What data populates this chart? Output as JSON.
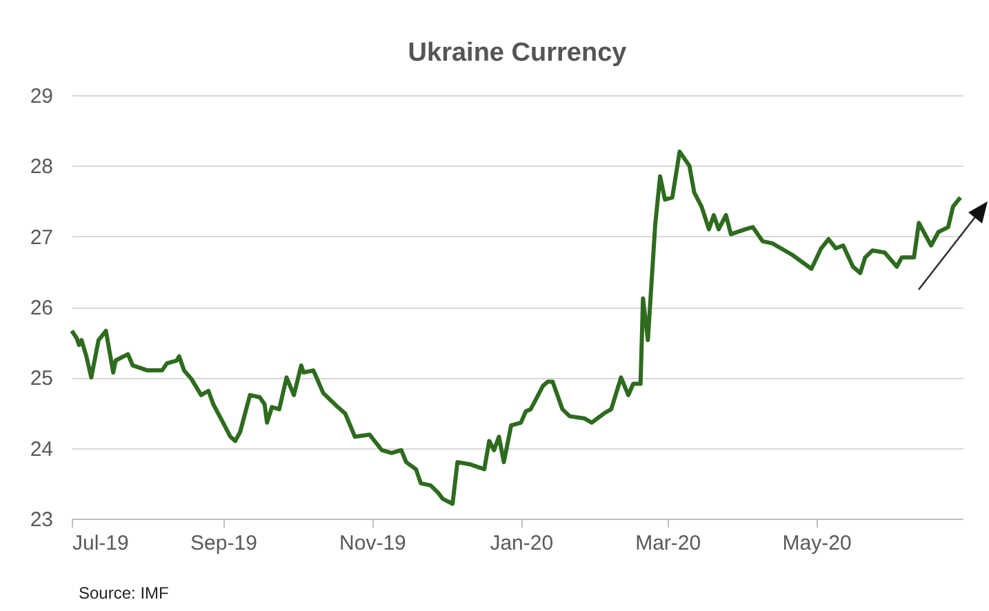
{
  "chart_data": {
    "type": "line",
    "title": "Ukraine Currency",
    "annotations": [
      "Source: IMF"
    ],
    "x": [
      "2019-07-01",
      "2019-07-03",
      "2019-07-04",
      "2019-07-05",
      "2019-07-07",
      "2019-07-09",
      "2019-07-12",
      "2019-07-15",
      "2019-07-18",
      "2019-07-19",
      "2019-07-24",
      "2019-07-26",
      "2019-08-01",
      "2019-08-07",
      "2019-08-09",
      "2019-08-13",
      "2019-08-14",
      "2019-08-16",
      "2019-08-19",
      "2019-08-23",
      "2019-08-26",
      "2019-08-28",
      "2019-09-01",
      "2019-09-04",
      "2019-09-06",
      "2019-09-08",
      "2019-09-12",
      "2019-09-16",
      "2019-09-18",
      "2019-09-19",
      "2019-09-21",
      "2019-09-24",
      "2019-09-27",
      "2019-09-30",
      "2019-10-03",
      "2019-10-04",
      "2019-10-08",
      "2019-10-12",
      "2019-10-18",
      "2019-10-21",
      "2019-10-25",
      "2019-10-31",
      "2019-11-05",
      "2019-11-09",
      "2019-11-13",
      "2019-11-15",
      "2019-11-19",
      "2019-11-21",
      "2019-11-25",
      "2019-11-28",
      "2019-11-30",
      "2019-12-04",
      "2019-12-06",
      "2019-12-11",
      "2019-12-17",
      "2019-12-19",
      "2019-12-21",
      "2019-12-23",
      "2019-12-25",
      "2019-12-28",
      "2020-01-01",
      "2020-01-03",
      "2020-01-05",
      "2020-01-07",
      "2020-01-10",
      "2020-01-12",
      "2020-01-14",
      "2020-01-18",
      "2020-01-21",
      "2020-01-27",
      "2020-01-30",
      "2020-02-04",
      "2020-02-07",
      "2020-02-11",
      "2020-02-14",
      "2020-02-16",
      "2020-02-19",
      "2020-02-20",
      "2020-02-22",
      "2020-02-25",
      "2020-02-27",
      "2020-02-29",
      "2020-03-03",
      "2020-03-05",
      "2020-03-06",
      "2020-03-10",
      "2020-03-12",
      "2020-03-15",
      "2020-03-18",
      "2020-03-20",
      "2020-03-22",
      "2020-03-25",
      "2020-03-27",
      "2020-04-02",
      "2020-04-05",
      "2020-04-09",
      "2020-04-13",
      "2020-04-21",
      "2020-04-29",
      "2020-05-03",
      "2020-05-06",
      "2020-05-09",
      "2020-05-12",
      "2020-05-16",
      "2020-05-19",
      "2020-05-21",
      "2020-05-24",
      "2020-05-29",
      "2020-06-03",
      "2020-06-05",
      "2020-06-10",
      "2020-06-12",
      "2020-06-17",
      "2020-06-20",
      "2020-06-24",
      "2020-06-26",
      "2020-06-29"
    ],
    "series": [
      {
        "color": "#2e6b1f",
        "values": [
          25.66,
          25.56,
          25.46,
          25.53,
          25.3,
          25.0,
          25.53,
          25.66,
          25.07,
          25.24,
          25.33,
          25.17,
          25.1,
          25.1,
          25.2,
          25.24,
          25.3,
          25.1,
          24.98,
          24.75,
          24.81,
          24.62,
          24.36,
          24.16,
          24.1,
          24.23,
          24.75,
          24.72,
          24.62,
          24.36,
          24.58,
          24.55,
          25.0,
          24.75,
          25.17,
          25.07,
          25.1,
          24.78,
          24.58,
          24.49,
          24.16,
          24.19,
          23.97,
          23.93,
          23.97,
          23.8,
          23.7,
          23.5,
          23.47,
          23.37,
          23.28,
          23.21,
          23.8,
          23.77,
          23.7,
          24.1,
          23.97,
          24.16,
          23.8,
          24.32,
          24.36,
          24.52,
          24.55,
          24.68,
          24.88,
          24.94,
          24.94,
          24.55,
          24.45,
          24.42,
          24.36,
          24.49,
          24.55,
          25.0,
          24.75,
          24.91,
          24.91,
          26.12,
          25.53,
          27.16,
          27.85,
          27.52,
          27.55,
          27.98,
          28.2,
          28.0,
          27.62,
          27.42,
          27.1,
          27.3,
          27.1,
          27.3,
          27.03,
          27.1,
          27.13,
          26.93,
          26.9,
          26.74,
          26.54,
          26.83,
          26.96,
          26.83,
          26.87,
          26.57,
          26.48,
          26.7,
          26.8,
          26.77,
          26.57,
          26.7,
          26.7,
          27.19,
          26.87,
          27.06,
          27.13,
          27.42,
          27.55
        ]
      }
    ],
    "xlim": [
      "2019-07-01",
      "2020-06-30"
    ],
    "xticks": [
      {
        "value": "2019-07-01",
        "label": "Jul-19"
      },
      {
        "value": "2019-09-01",
        "label": "Sep-19"
      },
      {
        "value": "2019-11-01",
        "label": "Nov-19"
      },
      {
        "value": "2020-01-01",
        "label": "Jan-20"
      },
      {
        "value": "2020-03-01",
        "label": "Mar-20"
      },
      {
        "value": "2020-05-01",
        "label": "May-20"
      }
    ],
    "ylim": [
      23,
      29
    ],
    "yticks": [
      23,
      24,
      25,
      26,
      27,
      28,
      29
    ],
    "grid": "y",
    "marker": "none",
    "line_style": "solid"
  }
}
